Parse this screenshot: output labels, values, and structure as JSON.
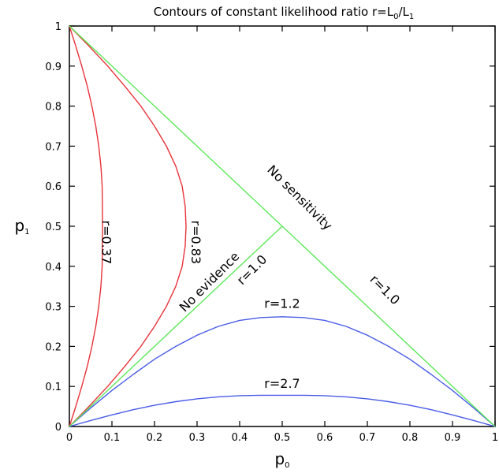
{
  "chart_data": {
    "type": "line",
    "title": "Contours of constant likelihood ratio r=L",
    "title_sub0": "0",
    "title_mid": "/L",
    "title_sub1": "1",
    "xlabel": "p",
    "xlabel_sub": "0",
    "ylabel": "p",
    "ylabel_sub": "1",
    "xlim": [
      0,
      1
    ],
    "ylim": [
      0,
      1
    ],
    "xticks": [
      "0",
      "0.1",
      "0.2",
      "0.3",
      "0.4",
      "0.5",
      "0.6",
      "0.7",
      "0.8",
      "0.9",
      "1"
    ],
    "yticks": [
      "0",
      "0.1",
      "0.2",
      "0.3",
      "0.4",
      "0.5",
      "0.6",
      "0.7",
      "0.8",
      "0.9",
      "1"
    ],
    "grid": false,
    "series": [
      {
        "name": "r=0.37",
        "color": "#e8333a",
        "x": [
          0,
          0.015,
          0.029,
          0.042,
          0.053,
          0.062,
          0.069,
          0.074,
          0.077,
          0.078,
          0.077,
          0.074,
          0.069,
          0.062,
          0.053,
          0.042,
          0.029,
          0.015,
          0
        ],
        "y": [
          0,
          0.05,
          0.1,
          0.15,
          0.2,
          0.25,
          0.3,
          0.35,
          0.4,
          0.5,
          0.6,
          0.65,
          0.7,
          0.75,
          0.8,
          0.85,
          0.9,
          0.95,
          1
        ]
      },
      {
        "name": "r=0.83",
        "color": "#e8333a",
        "x": [
          0,
          0.046,
          0.09,
          0.13,
          0.168,
          0.2,
          0.228,
          0.25,
          0.265,
          0.272,
          0.274,
          0.272,
          0.265,
          0.25,
          0.228,
          0.2,
          0.168,
          0.13,
          0.09,
          0.046,
          0
        ],
        "y": [
          0,
          0.05,
          0.1,
          0.15,
          0.2,
          0.25,
          0.3,
          0.35,
          0.4,
          0.45,
          0.5,
          0.55,
          0.6,
          0.65,
          0.7,
          0.75,
          0.8,
          0.85,
          0.9,
          0.95,
          1
        ]
      },
      {
        "name": "r=1.2",
        "color": "#4a5ce8",
        "x": [
          0,
          0.05,
          0.1,
          0.15,
          0.2,
          0.25,
          0.3,
          0.35,
          0.4,
          0.45,
          0.5,
          0.55,
          0.6,
          0.65,
          0.7,
          0.75,
          0.8,
          0.85,
          0.9,
          0.95,
          1
        ],
        "y": [
          0,
          0.046,
          0.09,
          0.13,
          0.168,
          0.2,
          0.228,
          0.25,
          0.265,
          0.272,
          0.274,
          0.272,
          0.265,
          0.25,
          0.228,
          0.2,
          0.168,
          0.13,
          0.09,
          0.046,
          0
        ]
      },
      {
        "name": "r=2.7",
        "color": "#4a5ce8",
        "x": [
          0,
          0.05,
          0.1,
          0.15,
          0.2,
          0.25,
          0.3,
          0.35,
          0.4,
          0.45,
          0.5,
          0.55,
          0.6,
          0.65,
          0.7,
          0.75,
          0.8,
          0.85,
          0.9,
          0.95,
          1
        ],
        "y": [
          0,
          0.015,
          0.029,
          0.042,
          0.053,
          0.062,
          0.069,
          0.074,
          0.077,
          0.078,
          0.078,
          0.078,
          0.077,
          0.074,
          0.069,
          0.062,
          0.053,
          0.042,
          0.029,
          0.015,
          0
        ]
      },
      {
        "name": "r=1.0",
        "color": "#5ee85a",
        "x": [
          0,
          0.5
        ],
        "y": [
          0,
          0.5
        ]
      },
      {
        "name": "r=1.0",
        "color": "#5ee85a",
        "x": [
          0,
          1
        ],
        "y": [
          1,
          0
        ]
      }
    ],
    "annotations": [
      {
        "text": "r=0.37",
        "x": 0.085,
        "y": 0.46,
        "angle": 90
      },
      {
        "text": "r=0.83",
        "x": 0.295,
        "y": 0.46,
        "angle": 90
      },
      {
        "text": "No sensitivity",
        "x": 0.54,
        "y": 0.57,
        "angle": 45
      },
      {
        "text": "No evidence",
        "x": 0.33,
        "y": 0.36,
        "angle": -45
      },
      {
        "text": "r=1.0",
        "x": 0.43,
        "y": 0.39,
        "angle": -45
      },
      {
        "text": "r=1.0",
        "x": 0.74,
        "y": 0.34,
        "angle": 45
      },
      {
        "text": "r=1.2",
        "x": 0.5,
        "y": 0.305,
        "angle": 0
      },
      {
        "text": "r=2.7",
        "x": 0.5,
        "y": 0.105,
        "angle": 0
      }
    ]
  }
}
